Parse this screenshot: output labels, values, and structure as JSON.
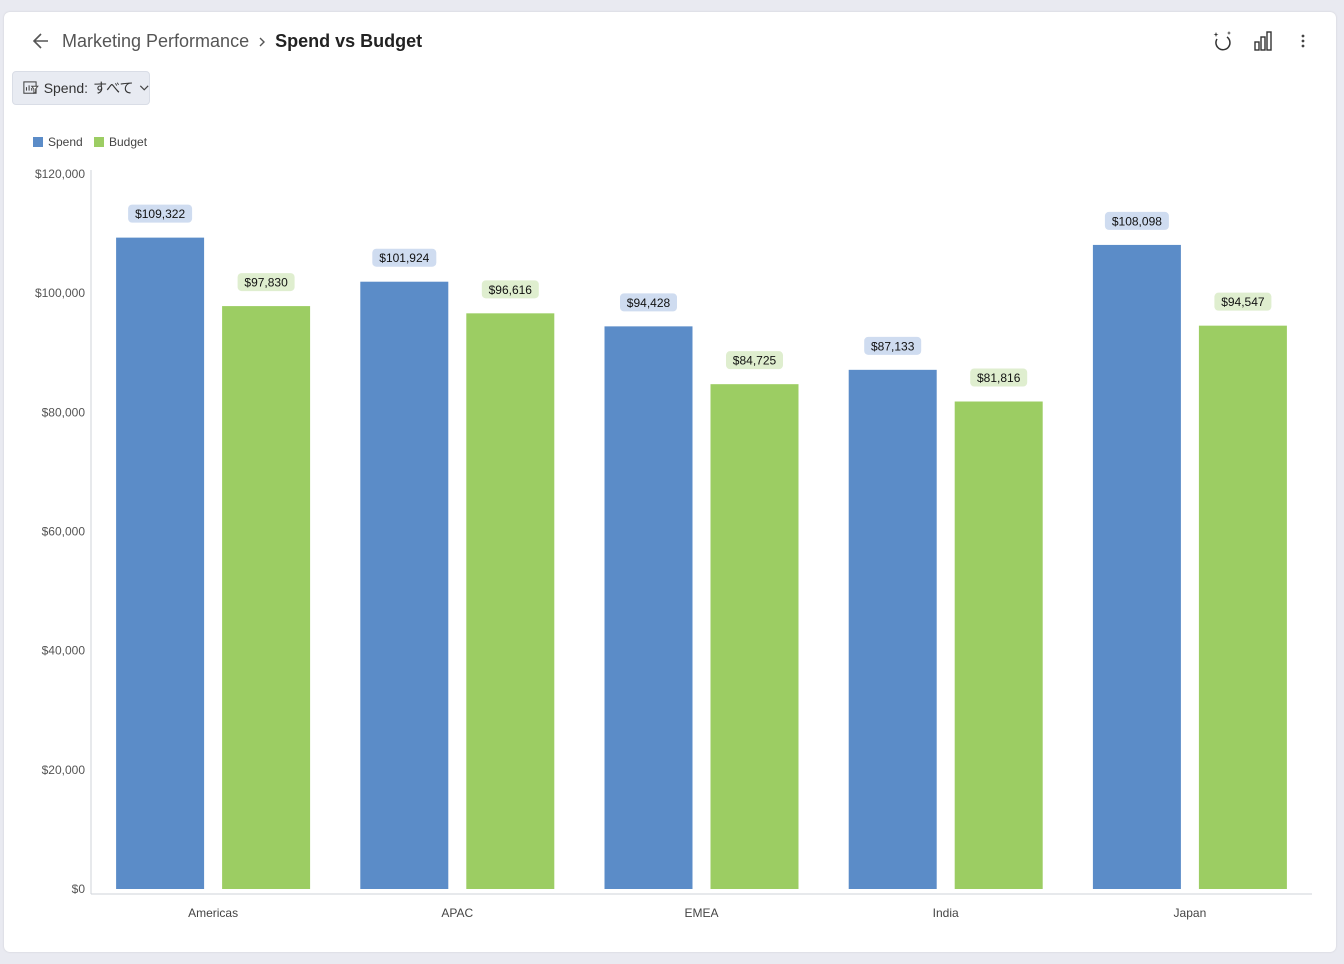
{
  "breadcrumb": {
    "parent": "Marketing Performance",
    "current": "Spend vs Budget"
  },
  "filter": {
    "label": "Spend:",
    "value": "すべて"
  },
  "icons": {
    "back": "arrow-left-icon",
    "ai": "ai-sparkle-icon",
    "chart_type": "bar-chart-icon",
    "more": "more-vertical-icon"
  },
  "colors": {
    "spend": "#5b8cc8",
    "budget": "#9ccd63",
    "spend_label_bg": "#cfdcf0",
    "budget_label_bg": "#dfeecf"
  },
  "chart_data": {
    "type": "bar",
    "categories": [
      "Americas",
      "APAC",
      "EMEA",
      "India",
      "Japan"
    ],
    "series": [
      {
        "name": "Spend",
        "values": [
          109322,
          101924,
          94428,
          87133,
          108098
        ],
        "labels": [
          "$109,322",
          "$101,924",
          "$94,428",
          "$87,133",
          "$108,098"
        ]
      },
      {
        "name": "Budget",
        "values": [
          97830,
          96616,
          84725,
          81816,
          94547
        ],
        "labels": [
          "$97,830",
          "$96,616",
          "$84,725",
          "$81,816",
          "$94,547"
        ]
      }
    ],
    "ylim": [
      0,
      120000
    ],
    "yticks": [
      0,
      20000,
      40000,
      60000,
      80000,
      100000,
      120000
    ],
    "ytick_labels": [
      "$0",
      "$20,000",
      "$40,000",
      "$60,000",
      "$80,000",
      "$100,000",
      "$120,000"
    ],
    "legend_position": "top-left",
    "grid": false
  }
}
